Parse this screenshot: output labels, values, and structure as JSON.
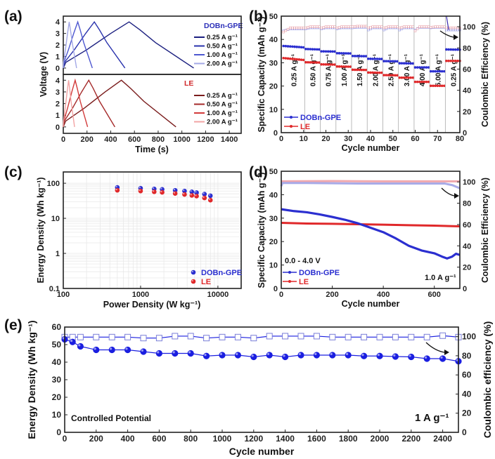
{
  "chart_data": [
    {
      "panel": "(a)",
      "type": "line",
      "xlabel": "Time (s)",
      "ylabel": "Voltage (V)",
      "xlim": [
        0,
        1500
      ],
      "ylim": [
        -0.55,
        4.5
      ],
      "x_ticks": [
        "0",
        "200",
        "400",
        "600",
        "800",
        "1000",
        "1200",
        "1400"
      ],
      "y_ticks": [
        "0",
        "1",
        "2",
        "3",
        "4"
      ],
      "subplots": [
        {
          "label": "DOBn-GPE",
          "label_color": "#2b2fb8",
          "series": [
            {
              "name": "0.25 A g⁻¹",
              "color": "#1c2080",
              "peak_time": 555,
              "end_time": 1100
            },
            {
              "name": "0.50 A g⁻¹",
              "color": "#2a33ad",
              "peak_time": 262,
              "end_time": 520
            },
            {
              "name": "1.00 A g⁻¹",
              "color": "#4d57d0",
              "peak_time": 122,
              "end_time": 245
            },
            {
              "name": "2.00 A g⁻¹",
              "color": "#a3a8e6",
              "peak_time": 50,
              "end_time": 112
            }
          ]
        },
        {
          "label": "LE",
          "label_color": "#d0282a",
          "series": [
            {
              "name": "0.25 A g⁻¹",
              "color": "#7a1c1c",
              "peak_time": 490,
              "end_time": 950
            },
            {
              "name": "0.50 A g⁻¹",
              "color": "#a52a2a",
              "peak_time": 215,
              "end_time": 435
            },
            {
              "name": "1.00 A g⁻¹",
              "color": "#d23a3a",
              "peak_time": 100,
              "end_time": 205
            },
            {
              "name": "2.00 A g⁻¹",
              "color": "#f2a4a4",
              "peak_time": 45,
              "end_time": 95
            }
          ]
        }
      ],
      "charge_shape": {
        "time_fraction": [
          0,
          0.04,
          0.36,
          0.72,
          1
        ],
        "voltage": [
          0,
          0.5,
          1.6,
          3.0,
          4.0
        ]
      },
      "discharge_shape": {
        "time_fraction": [
          0,
          0.17,
          0.41,
          1
        ],
        "voltage": [
          4.0,
          3.3,
          2.2,
          0
        ]
      }
    },
    {
      "panel": "(b)",
      "type": "scatter",
      "xlabel": "Cycle number",
      "ylabel": "Specific Capacity (mAh g⁻¹)",
      "y2label": "Coulombic Efficiency (%)",
      "xlim": [
        0,
        80
      ],
      "ylim": [
        0,
        50
      ],
      "y2lim": [
        0,
        110
      ],
      "x_ticks": [
        "0",
        "10",
        "20",
        "30",
        "40",
        "50",
        "60",
        "70",
        "80"
      ],
      "y_ticks": [
        "0",
        "10",
        "20",
        "30",
        "40",
        "50"
      ],
      "y2_ticks": [
        "0",
        "20",
        "40",
        "60",
        "80",
        "100"
      ],
      "legend": [
        "DOBn-GPE",
        "LE"
      ],
      "legend_position": "bottom-left",
      "colors": {
        "DOBn-GPE": "#2b2fd0",
        "LE": "#e0282a"
      },
      "segments": [
        {
          "rate": "0.25 A g⁻¹",
          "cycles": [
            1,
            10
          ],
          "dobn": [
            37.2,
            36.6
          ],
          "le": [
            32.0,
            31.2
          ],
          "ce_dobn": [
            96,
            98
          ],
          "ce_le": [
            95,
            99
          ]
        },
        {
          "rate": "0.50 A g⁻¹",
          "cycles": [
            11,
            17
          ],
          "dobn": [
            35.9,
            35.7
          ],
          "le": [
            30.2,
            30.1
          ],
          "ce_dobn": [
            98,
            99
          ],
          "ce_le": [
            99,
            100
          ]
        },
        {
          "rate": "0.75 A g⁻¹",
          "cycles": [
            18,
            24
          ],
          "dobn": [
            34.9,
            34.8
          ],
          "le": [
            29.3,
            29.2
          ],
          "ce_dobn": [
            98,
            99
          ],
          "ce_le": [
            99,
            100
          ]
        },
        {
          "rate": "1.00 A g⁻¹",
          "cycles": [
            25,
            31
          ],
          "dobn": [
            34.1,
            34.0
          ],
          "le": [
            28.4,
            28.3
          ],
          "ce_dobn": [
            98,
            99
          ],
          "ce_le": [
            99,
            100
          ]
        },
        {
          "rate": "1.50 A g⁻¹",
          "cycles": [
            32,
            38
          ],
          "dobn": [
            32.9,
            32.8
          ],
          "le": [
            27.0,
            26.9
          ],
          "ce_dobn": [
            99,
            99.5
          ],
          "ce_le": [
            100,
            100.5
          ]
        },
        {
          "rate": "2.00 A g⁻¹",
          "cycles": [
            39,
            45
          ],
          "dobn": [
            31.7,
            31.6
          ],
          "le": [
            25.8,
            25.7
          ],
          "ce_dobn": [
            97,
            99
          ],
          "ce_le": [
            99,
            100
          ]
        },
        {
          "rate": "2.50 A g⁻¹",
          "cycles": [
            46,
            52
          ],
          "dobn": [
            30.7,
            30.6
          ],
          "le": [
            24.7,
            24.6
          ],
          "ce_dobn": [
            97,
            99
          ],
          "ce_le": [
            99,
            100
          ]
        },
        {
          "rate": "3.00 A g⁻¹",
          "cycles": [
            53,
            59
          ],
          "dobn": [
            29.8,
            29.7
          ],
          "le": [
            23.6,
            23.6
          ],
          "ce_dobn": [
            97,
            99
          ],
          "ce_le": [
            99,
            100
          ]
        },
        {
          "rate": "4.00 A g⁻¹",
          "cycles": [
            60,
            66
          ],
          "dobn": [
            28.0,
            28.0
          ],
          "le": [
            21.8,
            21.8
          ],
          "ce_dobn": [
            97,
            99.5
          ],
          "ce_le": [
            96,
            100
          ]
        },
        {
          "rate": "5.00 A g⁻¹",
          "cycles": [
            67,
            73
          ],
          "dobn": [
            26.3,
            26.3
          ],
          "le": [
            20.1,
            20.1
          ],
          "ce_dobn": [
            99,
            99.5
          ],
          "ce_le": [
            99.5,
            100
          ]
        },
        {
          "rate": "0.25 A g⁻¹",
          "cycles": [
            74,
            80
          ],
          "dobn": [
            35.7,
            35.6
          ],
          "le": [
            30.8,
            30.8
          ],
          "ce_dobn": [
            97,
            97
          ],
          "ce_le": [
            99,
            99
          ]
        }
      ]
    },
    {
      "panel": "(c)",
      "type": "scatter",
      "xlabel": "Power Density (W kg⁻¹)",
      "ylabel": "Energy Density (Wh kg⁻¹)",
      "xscale": "log",
      "yscale": "log",
      "xlim": [
        100,
        20000
      ],
      "ylim": [
        0.1,
        210
      ],
      "grid": true,
      "x_ticks": [
        "100",
        "1000",
        "10000"
      ],
      "y_ticks": [
        "0.1",
        "1",
        "10",
        "100"
      ],
      "legend": [
        "DOBn-GPE",
        "LE"
      ],
      "legend_position": "bottom-right",
      "colors": {
        "DOBn-GPE": "#2b2fd0",
        "LE": "#e0282a"
      },
      "x": [
        500,
        1000,
        1500,
        1900,
        2800,
        3700,
        4600,
        5300,
        6700,
        8000
      ],
      "series": [
        {
          "name": "DOBn-GPE",
          "values": [
            76,
            72,
            69,
            67,
            63,
            60,
            57,
            54,
            49,
            44
          ]
        },
        {
          "name": "LE",
          "values": [
            63,
            60,
            57,
            55,
            51,
            48,
            45,
            43,
            38,
            33
          ]
        }
      ]
    },
    {
      "panel": "(d)",
      "type": "line",
      "xlabel": "Cycle number",
      "ylabel": "Specific Capacity (mAh g⁻¹)",
      "y2label": "Coulombic Efficiency (%)",
      "xlim": [
        0,
        700
      ],
      "ylim": [
        0,
        50
      ],
      "y2lim": [
        0,
        110
      ],
      "x_ticks": [
        "0",
        "200",
        "400",
        "600"
      ],
      "y_ticks": [
        "0",
        "10",
        "20",
        "30",
        "40",
        "50"
      ],
      "y2_ticks": [
        "0",
        "20",
        "40",
        "60",
        "80",
        "100"
      ],
      "legend": [
        "DOBn-GPE",
        "LE"
      ],
      "legend_position": "bottom-left",
      "annotations": [
        "0.0 - 4.0 V",
        "1.0 A g⁻¹"
      ],
      "colors": {
        "DOBn-GPE": "#2b2fd0",
        "LE": "#e0282a"
      },
      "capacity": {
        "DOBn-GPE": {
          "x": [
            0,
            50,
            100,
            150,
            200,
            250,
            300,
            350,
            400,
            450,
            500,
            550,
            600,
            630,
            650,
            670,
            685,
            700
          ],
          "y": [
            33.8,
            33.0,
            32.5,
            31.6,
            30.5,
            29.3,
            27.8,
            25.9,
            24.0,
            21.3,
            18.2,
            16.2,
            15.0,
            13.6,
            12.8,
            13.6,
            14.8,
            14.3
          ]
        },
        "LE": {
          "x": [
            0,
            100,
            200,
            300,
            400,
            500,
            600,
            700
          ],
          "y": [
            28.0,
            27.7,
            27.6,
            27.4,
            27.2,
            27.0,
            26.8,
            26.5
          ]
        }
      },
      "coulombic_efficiency": {
        "DOBn-GPE": {
          "x": [
            0,
            5,
            100,
            300,
            500,
            640,
            670,
            700
          ],
          "y": [
            96,
            99,
            99,
            98.5,
            98.5,
            98.5,
            97,
            94
          ]
        },
        "LE": {
          "x": [
            0,
            200,
            400,
            600,
            700
          ],
          "y": [
            100.5,
            100.8,
            100.5,
            100.5,
            100.5
          ]
        }
      }
    },
    {
      "panel": "(e)",
      "type": "line",
      "xlabel": "Cycle number",
      "ylabel": "Energy Density (Wh kg⁻¹)",
      "y2label": "Coulombic efficiency (%)",
      "xlim": [
        0,
        2500
      ],
      "ylim": [
        0,
        60
      ],
      "y2lim": [
        0,
        110
      ],
      "x_ticks": [
        "0",
        "200",
        "400",
        "600",
        "800",
        "1000",
        "1200",
        "1400",
        "1600",
        "1800",
        "2000",
        "2200",
        "2400"
      ],
      "y_ticks": [
        "0",
        "10",
        "20",
        "30",
        "40",
        "50",
        "60"
      ],
      "y2_ticks": [
        "0",
        "20",
        "40",
        "60",
        "80",
        "100"
      ],
      "annotations": [
        "Controlled Potential",
        "1 A g⁻¹"
      ],
      "color": "#1a1ee0",
      "x": [
        0,
        50,
        100,
        200,
        300,
        400,
        500,
        600,
        700,
        800,
        900,
        1000,
        1100,
        1200,
        1300,
        1400,
        1500,
        1600,
        1700,
        1800,
        1900,
        2000,
        2100,
        2200,
        2300,
        2400,
        2500
      ],
      "series": [
        {
          "values": [
            53,
            51.5,
            49,
            47,
            47,
            47,
            46,
            45,
            45,
            45,
            43.5,
            44,
            44,
            43,
            44,
            43,
            44,
            44,
            44,
            44,
            43.5,
            43.5,
            43.2,
            43,
            42,
            42,
            40.5
          ]
        },
        {
          "values": [
            99.5,
            99.5,
            99.5,
            99.5,
            99.5,
            99.5,
            98.5,
            98.5,
            100.5,
            100.5,
            98.5,
            99.5,
            99.5,
            98.5,
            100.5,
            100.5,
            100.5,
            100.5,
            99.5,
            99.5,
            99.5,
            99.5,
            99.5,
            99.5,
            99.5,
            101,
            99.5
          ]
        }
      ]
    }
  ],
  "panel_labels": [
    "(a)",
    "(b)",
    "(c)",
    "(d)",
    "(e)"
  ]
}
